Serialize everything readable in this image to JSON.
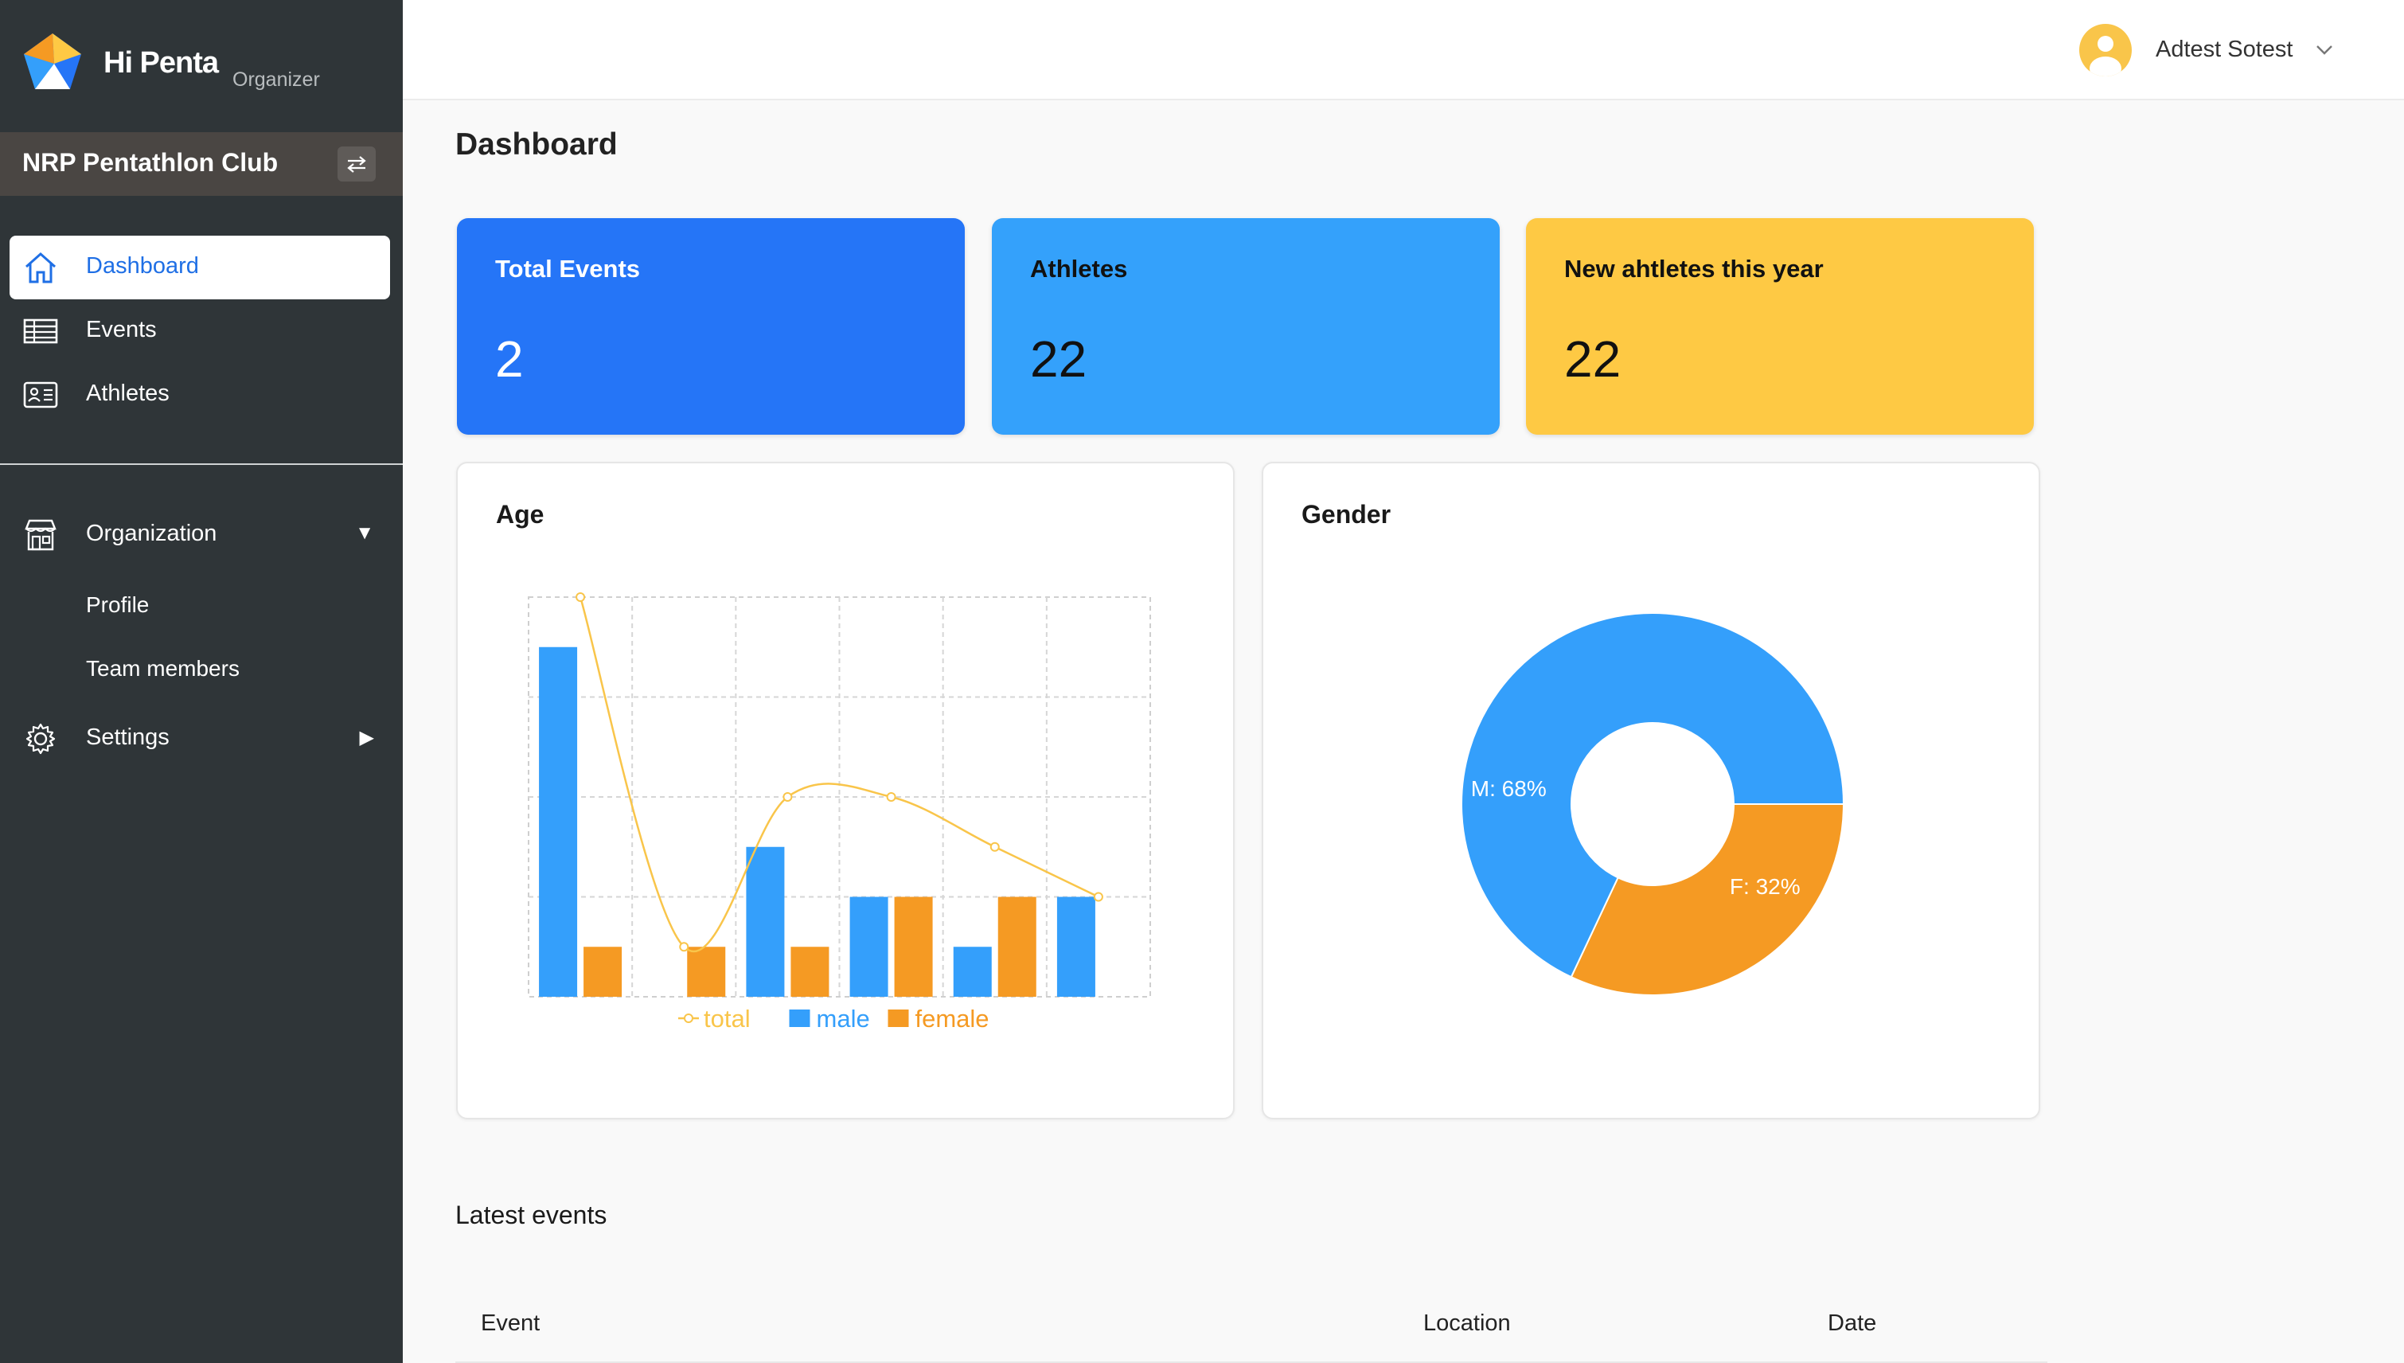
{
  "sidebar": {
    "brand": {
      "name": "Hi Penta",
      "sub": "Organizer"
    },
    "club": {
      "name": "NRP Pentathlon Club"
    },
    "nav": [
      {
        "label": "Dashboard",
        "icon": "home-icon",
        "active": true
      },
      {
        "label": "Events",
        "icon": "table-icon"
      },
      {
        "label": "Athletes",
        "icon": "id-card-icon"
      }
    ],
    "organization": {
      "label": "Organization",
      "icon": "building-icon",
      "expanded": true,
      "items": [
        {
          "label": "Profile"
        },
        {
          "label": "Team members"
        }
      ]
    },
    "settings": {
      "label": "Settings",
      "icon": "gear-icon",
      "expanded": false
    }
  },
  "topbar": {
    "user": {
      "name": "Adtest Sotest"
    }
  },
  "main": {
    "title": "Dashboard",
    "stats": [
      {
        "label": "Total Events",
        "value": "2",
        "color": "#2575f7"
      },
      {
        "label": "Athletes",
        "value": "22",
        "color": "#34a1fb"
      },
      {
        "label": "New ahtletes this year",
        "value": "22",
        "color": "#fec944"
      }
    ],
    "latest_events": {
      "title": "Latest events",
      "columns": [
        "Event",
        "Location",
        "Date"
      ]
    }
  },
  "chart_data": [
    {
      "type": "bar",
      "title": "Age",
      "categories": [
        "",
        "",
        "",
        "",
        "",
        ""
      ],
      "ylim": [
        0,
        8
      ],
      "grid": true,
      "legend": "bottom",
      "series": [
        {
          "name": "total",
          "kind": "line",
          "color": "#f9c54a",
          "values": [
            8,
            1,
            4,
            4,
            3,
            2
          ]
        },
        {
          "name": "male",
          "kind": "bar",
          "color": "#349ffb",
          "values": [
            7,
            0,
            3,
            2,
            1,
            2
          ]
        },
        {
          "name": "female",
          "kind": "bar",
          "color": "#f59a23",
          "values": [
            1,
            1,
            1,
            2,
            2,
            0
          ]
        }
      ]
    },
    {
      "type": "pie",
      "title": "Gender",
      "donut": true,
      "slices": [
        {
          "label": "M: 68%",
          "name": "M",
          "value": 68,
          "color": "#349ffb"
        },
        {
          "label": "F: 32%",
          "name": "F",
          "value": 32,
          "color": "#f59a23"
        }
      ]
    }
  ]
}
